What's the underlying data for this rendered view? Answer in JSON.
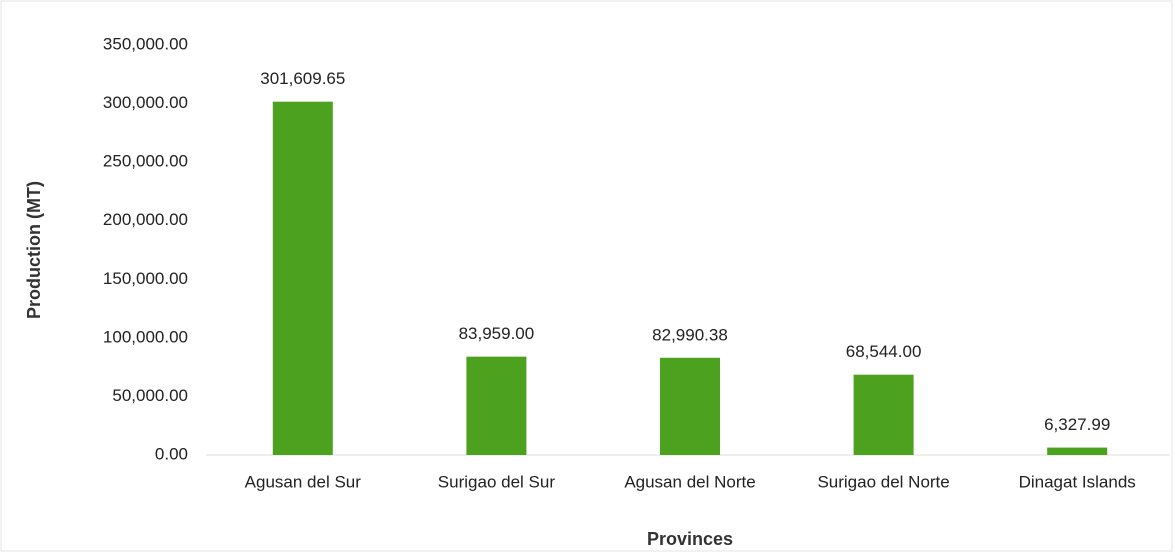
{
  "chart_data": {
    "type": "bar",
    "x_label": "Provinces",
    "y_label": "Production (MT)",
    "categories": [
      "Agusan del Sur",
      "Surigao del Sur",
      "Agusan del Norte",
      "Surigao del Norte",
      "Dinagat Islands"
    ],
    "values": [
      301609.65,
      83959.0,
      82990.38,
      68544.0,
      6327.99
    ],
    "value_labels": [
      "301,609.65",
      "83,959.00",
      "82,990.38",
      "68,544.00",
      "6,327.99"
    ],
    "color": "#4ca21e",
    "ylim": [
      0,
      350000
    ],
    "yticks": [
      {
        "value": 0,
        "label": "0.00"
      },
      {
        "value": 50000,
        "label": "50,000.00"
      },
      {
        "value": 100000,
        "label": "100,000.00"
      },
      {
        "value": 150000,
        "label": "150,000.00"
      },
      {
        "value": 200000,
        "label": "200,000.00"
      },
      {
        "value": 250000,
        "label": "250,000.00"
      },
      {
        "value": 300000,
        "label": "300,000.00"
      },
      {
        "value": 350000,
        "label": "350,000.00"
      }
    ],
    "grid": false
  }
}
